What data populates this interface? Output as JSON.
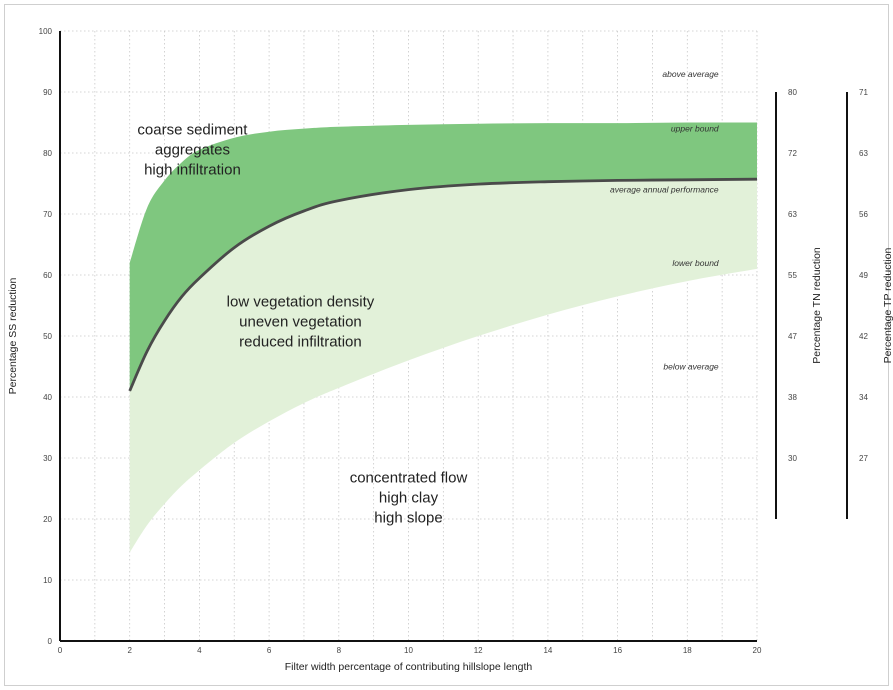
{
  "chart_data": {
    "type": "area",
    "xlabel": "Filter width percentage of contributing hillslope length",
    "ylabel": "Percentage SS reduction",
    "xlim": [
      0,
      20
    ],
    "ylim": [
      0,
      100
    ],
    "xticks": [
      0,
      2,
      4,
      6,
      8,
      10,
      12,
      14,
      16,
      18,
      20
    ],
    "yticks": [
      0,
      10,
      20,
      30,
      40,
      50,
      60,
      70,
      80,
      90,
      100
    ],
    "grid": true,
    "colors": {
      "upper_band": "#7fc77f",
      "lower_band": "#e2f1d9",
      "line": "#4a4a4a"
    },
    "x": [
      2,
      2.5,
      3,
      3.5,
      4,
      5,
      6,
      7,
      8,
      10,
      12,
      14,
      16,
      18,
      20
    ],
    "series": [
      {
        "name": "upper bound",
        "values": [
          62,
          71,
          75.5,
          78.5,
          80.5,
          82.5,
          83.5,
          84,
          84.3,
          84.6,
          84.8,
          84.9,
          84.9,
          85,
          85
        ]
      },
      {
        "name": "average annual performance",
        "values": [
          41,
          47.5,
          52.5,
          56.5,
          59.5,
          64.5,
          68,
          70.5,
          72.2,
          74,
          74.9,
          75.3,
          75.5,
          75.6,
          75.7
        ]
      },
      {
        "name": "lower bound",
        "values": [
          14.5,
          19,
          22.5,
          25.5,
          28,
          32.5,
          36,
          39,
          41.5,
          46,
          50,
          53.5,
          56.5,
          59,
          61
        ]
      }
    ],
    "band_labels": [
      {
        "text": "above average",
        "x": 18.9,
        "y": 92.5
      },
      {
        "text": "upper bound",
        "x": 18.9,
        "y": 83.5
      },
      {
        "text": "average annual performance",
        "x": 18.9,
        "y": 73.5
      },
      {
        "text": "lower bound",
        "x": 18.9,
        "y": 61.5
      },
      {
        "text": "below average",
        "x": 18.9,
        "y": 44.5
      }
    ],
    "annotations": [
      {
        "lines": [
          "coarse sediment",
          "aggregates",
          "high infiltration"
        ],
        "x": 3.8,
        "y": 83
      },
      {
        "lines": [
          "low vegetation density",
          "uneven vegetation",
          "reduced infiltration"
        ],
        "x": 6.9,
        "y": 54.8
      },
      {
        "lines": [
          "concentrated flow",
          "high clay",
          "high slope"
        ],
        "x": 10,
        "y": 26
      }
    ],
    "secondary_axes": [
      {
        "label": "Percentage TN reduction",
        "ticks": [
          {
            "ss": 90,
            "label": "80"
          },
          {
            "ss": 80,
            "label": "72"
          },
          {
            "ss": 70,
            "label": "63"
          },
          {
            "ss": 60,
            "label": "55"
          },
          {
            "ss": 50,
            "label": "47"
          },
          {
            "ss": 40,
            "label": "38"
          },
          {
            "ss": 30,
            "label": "30"
          }
        ],
        "range_ss": [
          20,
          90
        ]
      },
      {
        "label": "Percentage TP reduction",
        "ticks": [
          {
            "ss": 90,
            "label": "71"
          },
          {
            "ss": 80,
            "label": "63"
          },
          {
            "ss": 70,
            "label": "56"
          },
          {
            "ss": 60,
            "label": "49"
          },
          {
            "ss": 50,
            "label": "42"
          },
          {
            "ss": 40,
            "label": "34"
          },
          {
            "ss": 30,
            "label": "27"
          }
        ],
        "range_ss": [
          20,
          90
        ]
      }
    ]
  }
}
